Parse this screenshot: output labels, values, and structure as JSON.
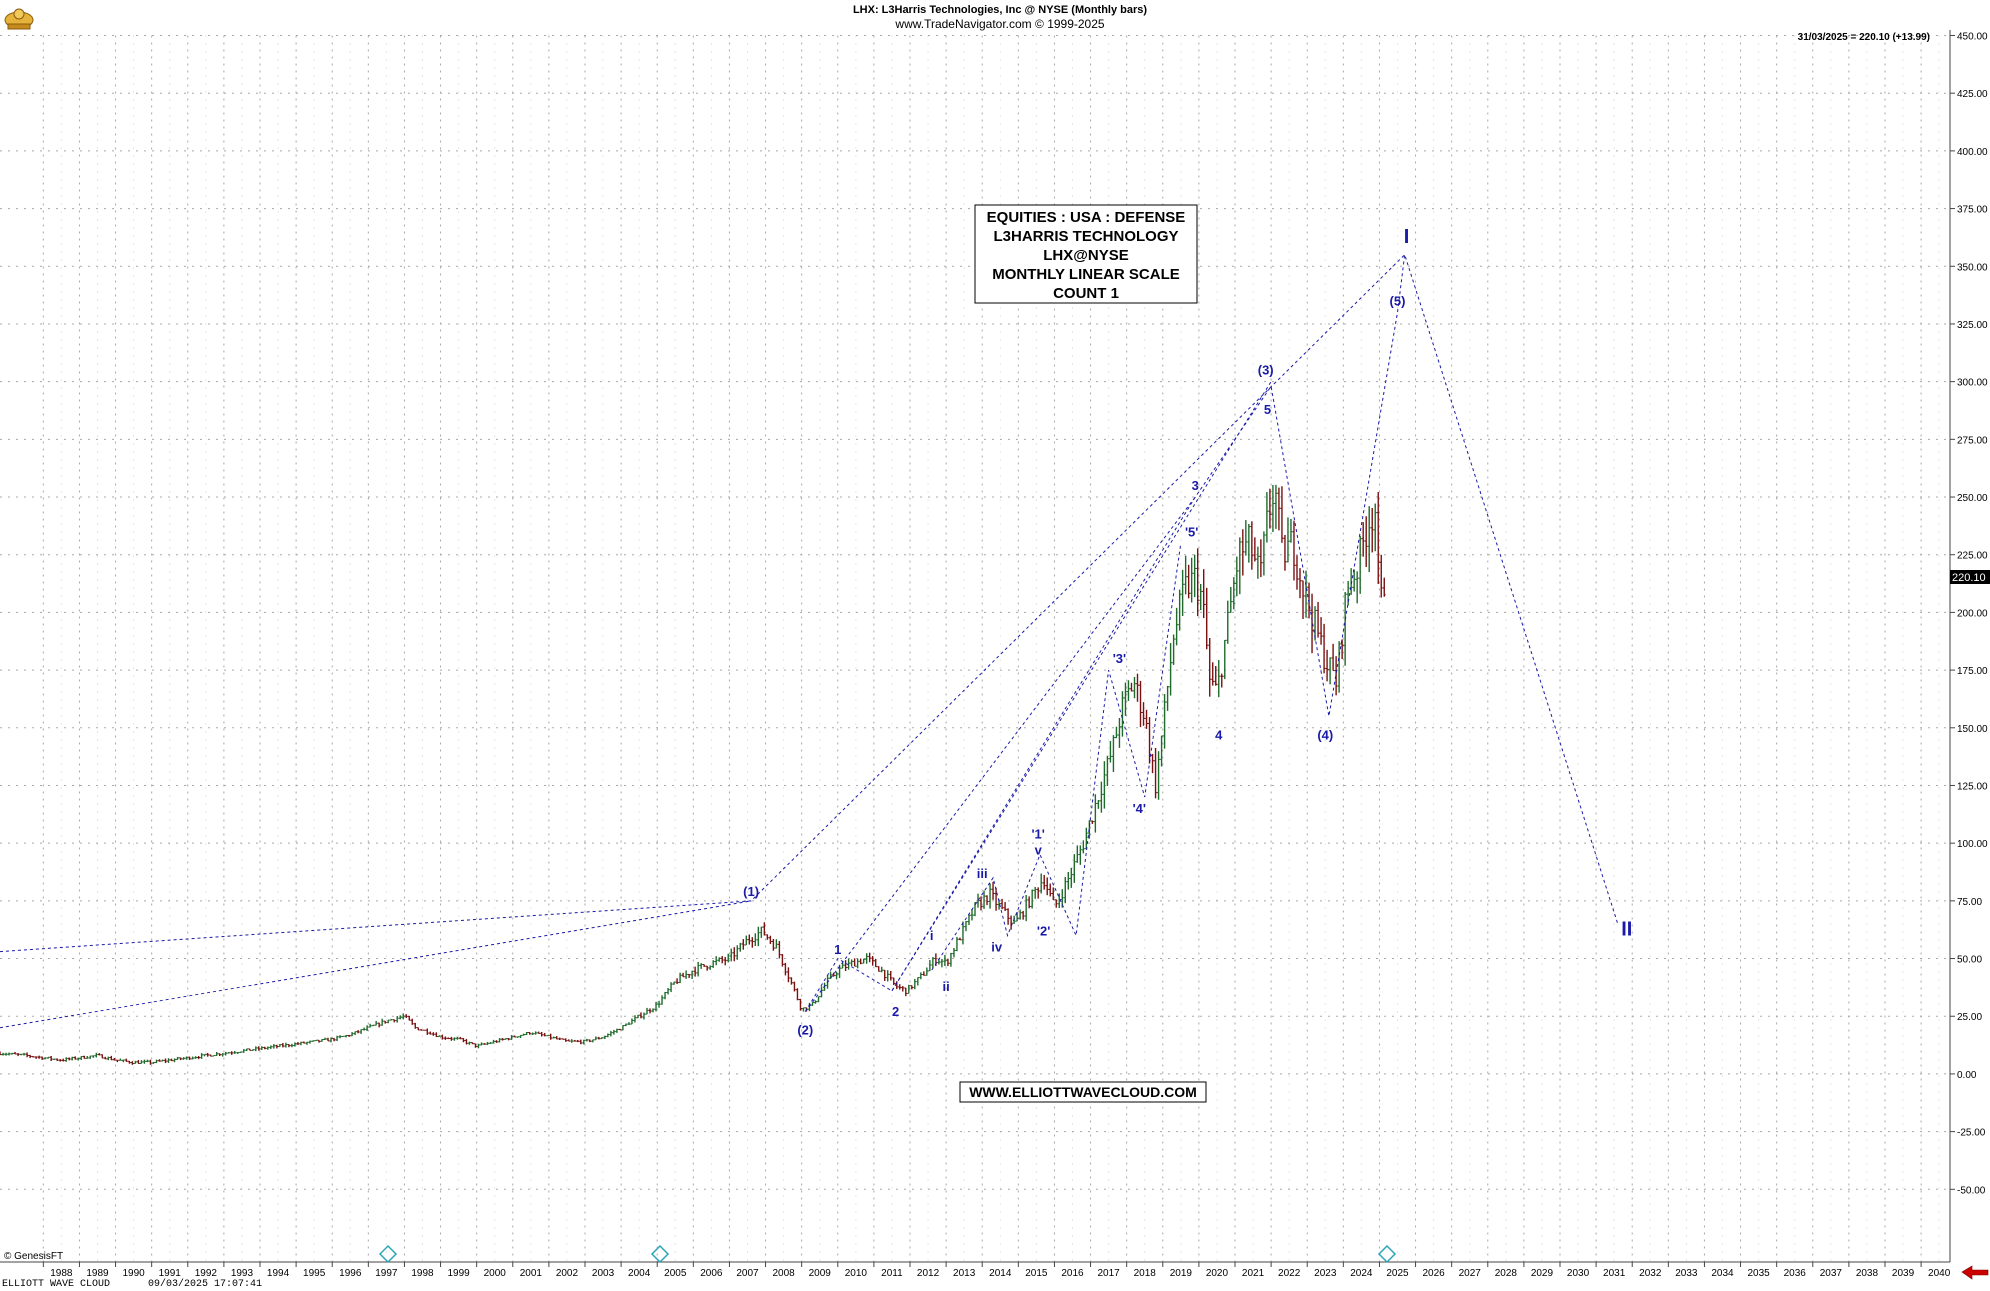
{
  "header": {
    "title": "LHX:  L3Harris Technologies, Inc @ NYSE  (Monthly bars)",
    "copyright": "www.TradeNavigator.com © 1999-2025",
    "last_readout": "31/03/2025 = 220.10 (+13.99)"
  },
  "info_box": {
    "lines": [
      "EQUITIES : USA : DEFENSE",
      "L3HARRIS TECHNOLOGY",
      "LHX@NYSE",
      "MONTHLY LINEAR SCALE",
      "COUNT 1"
    ]
  },
  "website_label": "WWW.ELLIOTTWAVECLOUD.COM",
  "footer": {
    "genesis": "© GenesisFT",
    "status_left": "ELLIOTT WAVE CLOUD",
    "status_time": "09/03/2025 17:07:41"
  },
  "colors": {
    "wave_blue": "#1a1aa8",
    "grid": "#a8a8a8",
    "up_bar": "#1f6b2c",
    "down_bar": "#7a1010",
    "arrow": "#cc0000",
    "marker_cyan": "#2aa6b8"
  },
  "chart_data": {
    "type": "line",
    "y_axis": {
      "range": [
        -75,
        450
      ],
      "ticks": [
        450,
        425,
        400,
        375,
        350,
        325,
        300,
        275,
        250,
        225,
        200,
        175,
        150,
        125,
        100,
        75,
        50,
        25,
        0,
        -25,
        -50
      ],
      "tick_labels": [
        "450.00",
        "425.00",
        "400.00",
        "375.00",
        "350.00",
        "325.00",
        "300.00",
        "275.00",
        "250.00",
        "225.00",
        "200.00",
        "175.00",
        "150.00",
        "125.00",
        "100.00",
        "75.00",
        "50.00",
        "25.00",
        "0.00",
        "-25.00",
        "-50.00"
      ],
      "last_price_label": "220.10"
    },
    "x_axis": {
      "range": [
        1986.8,
        2040.8
      ],
      "years": [
        "1988",
        "1989",
        "1990",
        "1991",
        "1992",
        "1993",
        "1994",
        "1995",
        "1996",
        "1997",
        "1998",
        "1999",
        "2000",
        "2001",
        "2002",
        "2003",
        "2004",
        "2005",
        "2006",
        "2007",
        "2008",
        "2009",
        "2010",
        "2011",
        "2012",
        "2013",
        "2014",
        "2015",
        "2016",
        "2017",
        "2018",
        "2019",
        "2020",
        "2021",
        "2022",
        "2023",
        "2024",
        "2025",
        "2026",
        "2027",
        "2028",
        "2029",
        "2030",
        "2031",
        "2032",
        "2033",
        "2034",
        "2035",
        "2036",
        "2037",
        "2038",
        "2039",
        "2040"
      ]
    },
    "price_series": {
      "x": [
        1986.8,
        1987.5,
        1988.0,
        1988.5,
        1989.0,
        1989.5,
        1990.0,
        1990.5,
        1991.0,
        1991.5,
        1992.0,
        1992.5,
        1993.0,
        1993.5,
        1994.0,
        1994.5,
        1995.0,
        1995.5,
        1996.0,
        1996.5,
        1997.0,
        1997.5,
        1998.0,
        1998.3,
        1998.7,
        1999.0,
        1999.5,
        2000.0,
        2000.5,
        2001.0,
        2001.5,
        2002.0,
        2002.5,
        2003.0,
        2003.5,
        2004.0,
        2004.5,
        2005.0,
        2005.5,
        2006.0,
        2006.5,
        2007.0,
        2007.5,
        2007.9,
        2008.3,
        2008.7,
        2009.0,
        2009.3,
        2009.7,
        2010.0,
        2010.4,
        2010.8,
        2011.2,
        2011.6,
        2011.9,
        2012.3,
        2012.7,
        2013.0,
        2013.4,
        2013.8,
        2014.2,
        2014.6,
        2014.9,
        2015.3,
        2015.7,
        2016.0,
        2016.4,
        2016.8,
        2017.2,
        2017.6,
        2017.9,
        2018.2,
        2018.5,
        2018.8,
        2019.0,
        2019.3,
        2019.6,
        2019.9,
        2020.1,
        2020.3,
        2020.5,
        2020.8,
        2021.1,
        2021.4,
        2021.7,
        2021.9,
        2022.1,
        2022.3,
        2022.6,
        2022.9,
        2023.2,
        2023.5,
        2023.8,
        2024.1,
        2024.4,
        2024.7,
        2024.9,
        2025.0,
        2025.2
      ],
      "y": [
        9,
        8,
        7,
        6,
        7,
        8,
        6,
        5,
        5,
        6,
        7,
        8,
        9,
        10,
        11,
        12,
        13,
        14,
        15,
        17,
        20,
        23,
        25,
        20,
        18,
        16,
        15,
        12,
        14,
        16,
        18,
        16,
        14,
        14,
        16,
        20,
        25,
        30,
        40,
        45,
        48,
        50,
        58,
        62,
        55,
        40,
        28,
        30,
        40,
        45,
        48,
        50,
        45,
        38,
        36,
        42,
        50,
        48,
        60,
        72,
        78,
        70,
        65,
        75,
        85,
        72,
        85,
        100,
        120,
        140,
        160,
        170,
        155,
        125,
        150,
        190,
        210,
        215,
        205,
        170,
        165,
        195,
        225,
        230,
        215,
        240,
        255,
        225,
        230,
        210,
        195,
        180,
        170,
        210,
        220,
        240,
        245,
        200,
        220
      ]
    },
    "wave_lines": [
      {
        "x": [
          1986.8,
          2007.6,
          2025.7,
          2031.6
        ],
        "y": [
          53,
          75,
          355,
          65
        ]
      },
      {
        "x": [
          1986.8,
          2007.6
        ],
        "y": [
          20,
          75
        ]
      },
      {
        "x": [
          2009.1,
          2010.0,
          2011.5,
          2019.9,
          2022.0,
          2023.6,
          2025.5,
          2025.7
        ],
        "y": [
          27,
          50,
          36,
          250,
          298,
          155,
          330,
          355
        ]
      },
      {
        "x": [
          2012.6,
          2014.3,
          2014.7,
          2015.6,
          2016.6,
          2017.5,
          2018.5,
          2019.5
        ],
        "y": [
          45,
          85,
          60,
          95,
          60,
          175,
          120,
          230
        ]
      },
      {
        "x": [
          2011.5,
          2022.0
        ],
        "y": [
          36,
          300
        ]
      },
      {
        "x": [
          2009.1,
          2019.9
        ],
        "y": [
          27,
          250
        ]
      }
    ],
    "wave_labels": [
      {
        "text": "I",
        "x": 2025.75,
        "y": 360,
        "size": "big"
      },
      {
        "text": "II",
        "x": 2031.85,
        "y": 60,
        "size": "big"
      },
      {
        "text": "(1)",
        "x": 2007.6,
        "y": 77
      },
      {
        "text": "(2)",
        "x": 2009.1,
        "y": 17
      },
      {
        "text": "(3)",
        "x": 2021.85,
        "y": 303
      },
      {
        "text": "(4)",
        "x": 2023.5,
        "y": 145
      },
      {
        "text": "(5)",
        "x": 2025.5,
        "y": 333
      },
      {
        "text": "1",
        "x": 2010.0,
        "y": 52
      },
      {
        "text": "2",
        "x": 2011.6,
        "y": 25
      },
      {
        "text": "3",
        "x": 2019.9,
        "y": 253
      },
      {
        "text": "4",
        "x": 2020.55,
        "y": 145
      },
      {
        "text": "5",
        "x": 2021.9,
        "y": 286
      },
      {
        "text": "i",
        "x": 2012.6,
        "y": 58
      },
      {
        "text": "ii",
        "x": 2013.0,
        "y": 36
      },
      {
        "text": "iii",
        "x": 2014.0,
        "y": 85
      },
      {
        "text": "iv",
        "x": 2014.4,
        "y": 53
      },
      {
        "text": "v",
        "x": 2015.55,
        "y": 95
      },
      {
        "text": "'1'",
        "x": 2015.55,
        "y": 102
      },
      {
        "text": "'2'",
        "x": 2015.7,
        "y": 60
      },
      {
        "text": "'3'",
        "x": 2017.8,
        "y": 178
      },
      {
        "text": "'4'",
        "x": 2018.35,
        "y": 113
      },
      {
        "text": "'5'",
        "x": 2019.8,
        "y": 233
      }
    ]
  }
}
